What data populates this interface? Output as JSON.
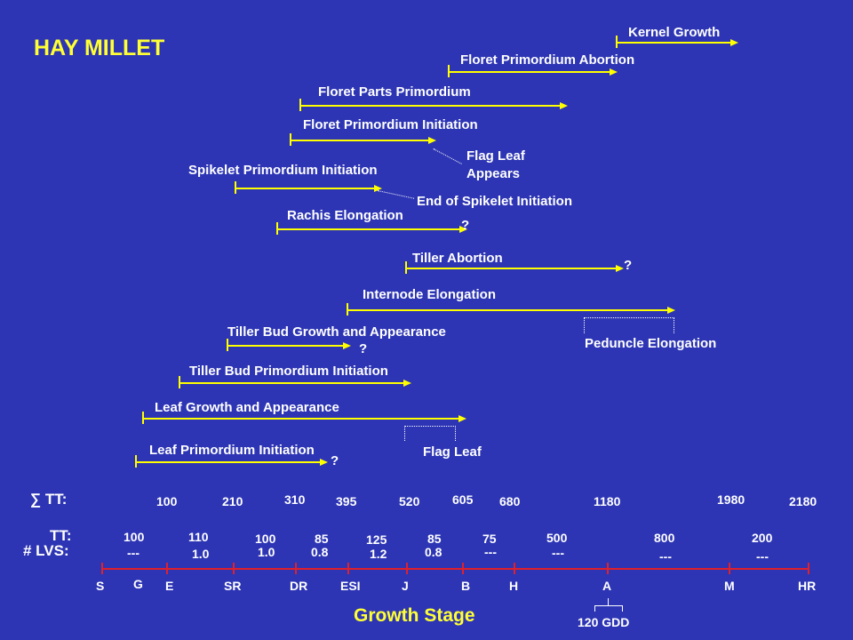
{
  "title": "HAY MILLET",
  "phases": [
    {
      "id": "kernel",
      "label": "Kernel Growth"
    },
    {
      "id": "floret_abort",
      "label": "Floret Primordium Abortion"
    },
    {
      "id": "floret_parts",
      "label": "Floret Parts Primordium"
    },
    {
      "id": "floret_init",
      "label": "Floret Primordium Initiation"
    },
    {
      "id": "spikelet",
      "label": "Spikelet Primordium Initiation"
    },
    {
      "id": "rachis",
      "label": "Rachis Elongation"
    },
    {
      "id": "tiller_abort",
      "label": "Tiller Abortion"
    },
    {
      "id": "internode",
      "label": "Internode Elongation"
    },
    {
      "id": "tiller_bud_growth",
      "label": "Tiller Bud Growth and Appearance"
    },
    {
      "id": "tiller_bud_init",
      "label": "Tiller Bud Primordium Initiation"
    },
    {
      "id": "leaf_growth",
      "label": "Leaf Growth and Appearance"
    },
    {
      "id": "leaf_init",
      "label": "Leaf Primordium Initiation"
    }
  ],
  "notes": {
    "flag_leaf_appears_1": "Flag Leaf",
    "flag_leaf_appears_2": "Appears",
    "end_spikelet": "End of Spikelet Initiation",
    "peduncle": "Peduncle Elongation",
    "flag_leaf": "Flag Leaf",
    "q": "?"
  },
  "rows": {
    "sum_tt_label": "∑ TT:",
    "tt_label": "TT:",
    "lvs_label": "# LVS:",
    "sum_tt": [
      "100",
      "210",
      "310",
      "395",
      "520",
      "605",
      "680",
      "1180",
      "1980",
      "2180"
    ],
    "tt": [
      "100",
      "110",
      "100",
      "85",
      "125",
      "85",
      "75",
      "500",
      "800",
      "200"
    ],
    "lvs": [
      "---",
      "1.0",
      "1.0",
      "0.8",
      "1.2",
      "0.8",
      "---",
      "---",
      "---",
      "---"
    ]
  },
  "stages": [
    "S",
    "G",
    "E",
    "SR",
    "DR",
    "ESI",
    "J",
    "B",
    "H",
    "A",
    "M",
    "HR"
  ],
  "axis_title": "Growth Stage",
  "gdd_note": "120 GDD",
  "colors": {
    "background": "#2d35b4",
    "arrow": "#ffff00",
    "axis": "#e0202a",
    "title": "#ffff33"
  }
}
